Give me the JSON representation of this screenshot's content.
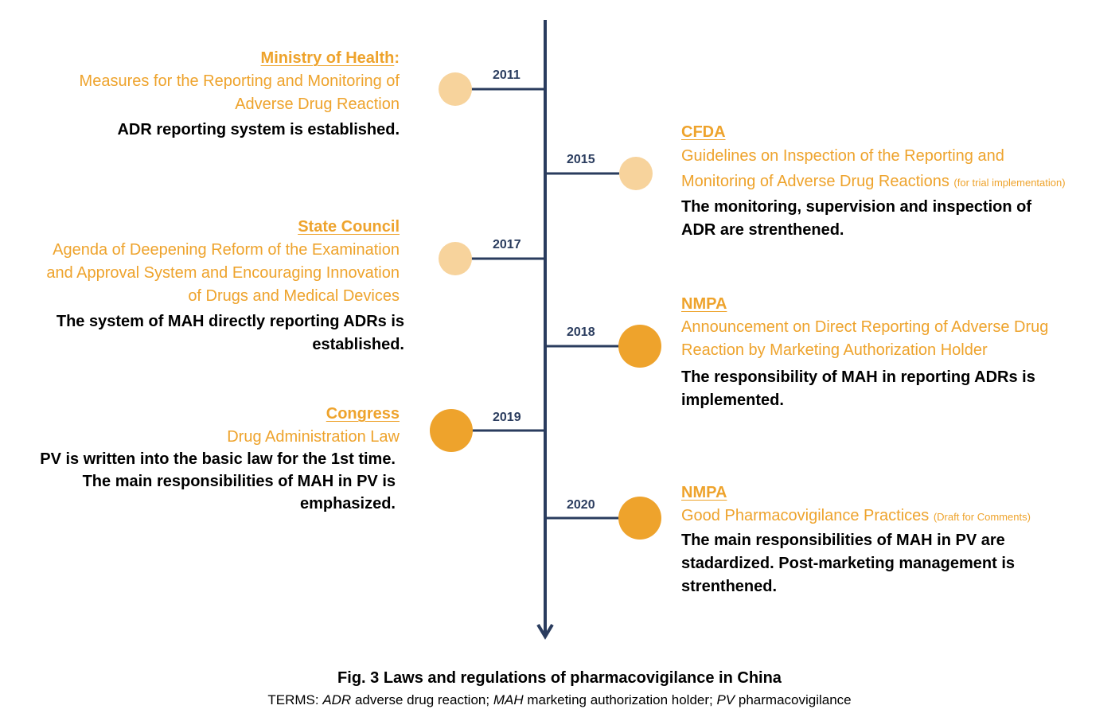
{
  "colors": {
    "timeline": "#2a3c5e",
    "accent": "#eea32c",
    "dot_light": "#f7d39c",
    "dot_dark": "#eea32c",
    "text": "#000000"
  },
  "events": [
    {
      "year": "2011",
      "org": "Ministry of Health",
      "org_suffix": ":",
      "doc_lines": [
        "Measures for the Reporting and Monitoring of",
        "Adverse Drug Reaction"
      ],
      "desc_lines": [
        "ADR reporting system is established."
      ]
    },
    {
      "year": "2015",
      "org": "CFDA",
      "doc_lines": [
        "Guidelines on Inspection of the Reporting and",
        "Monitoring of Adverse Drug Reactions"
      ],
      "doc_note": "(for trial implementation)",
      "desc_lines": [
        "The monitoring, supervision and inspection of",
        "ADR are strenthened."
      ]
    },
    {
      "year": "2017",
      "org": "State Council",
      "doc_lines": [
        "Agenda of Deepening Reform of the Examination",
        "and Approval System and Encouraging Innovation",
        "of Drugs and Medical Devices"
      ],
      "desc_lines": [
        "The system of MAH directly reporting ADRs is",
        "established."
      ]
    },
    {
      "year": "2018",
      "org": "NMPA",
      "doc_lines": [
        "Announcement on Direct Reporting of Adverse Drug",
        "Reaction by Marketing Authorization Holder"
      ],
      "desc_lines": [
        "The responsibility of MAH in reporting ADRs is",
        "implemented."
      ]
    },
    {
      "year": "2019",
      "org": "Congress",
      "doc_lines": [
        "Drug Administration Law"
      ],
      "desc_lines": [
        "PV is written into the basic law for the 1st time.",
        "The main responsibilities of MAH in PV is",
        "emphasized."
      ]
    },
    {
      "year": "2020",
      "org": "NMPA",
      "doc_lines": [
        "Good Pharmacovigilance Practices"
      ],
      "doc_note": "(Draft for Comments)",
      "desc_lines": [
        "The main responsibilities of MAH in PV are",
        "stadardized. Post-marketing management is",
        "strenthened."
      ]
    }
  ],
  "caption": {
    "title": "Fig. 3  Laws and regulations of pharmacovigilance in China",
    "terms_parts": [
      "TERMS: ",
      "ADR",
      " adverse drug reaction; ",
      "MAH",
      " marketing authorization holder; ",
      "PV",
      " pharmacovigilance"
    ]
  }
}
